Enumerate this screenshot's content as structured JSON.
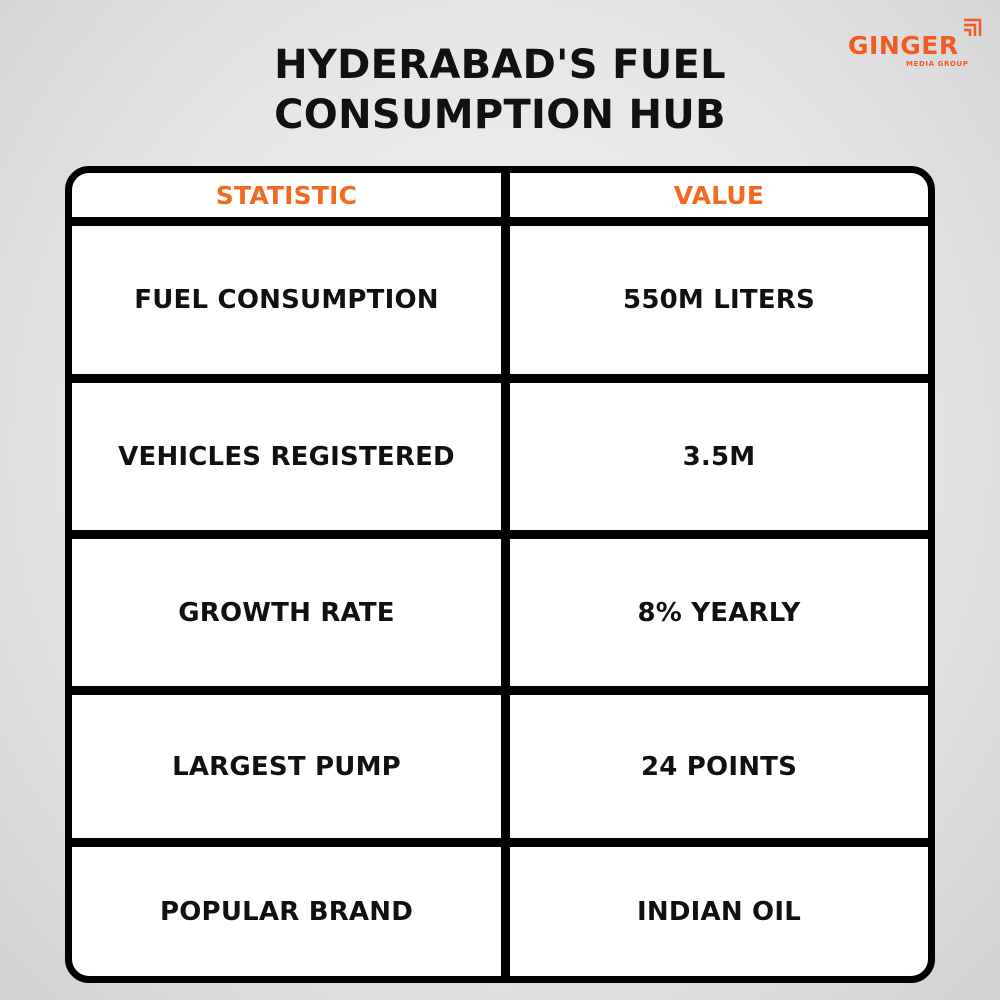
{
  "title": {
    "line1": "HYDERABAD'S FUEL",
    "line2": "CONSUMPTION HUB"
  },
  "logo": {
    "word": "GINGER",
    "sub": "MEDIA GROUP",
    "color": "#f15a22"
  },
  "table": {
    "headers": {
      "statistic": "STATISTIC",
      "value": "VALUE"
    },
    "rows": [
      {
        "statistic": "FUEL CONSUMPTION",
        "value": "550M LITERS"
      },
      {
        "statistic": "VEHICLES REGISTERED",
        "value": "3.5M"
      },
      {
        "statistic": "GROWTH RATE",
        "value": "8% YEARLY"
      },
      {
        "statistic": "LARGEST PUMP",
        "value": "24 POINTS"
      },
      {
        "statistic": "POPULAR BRAND",
        "value": "INDIAN OIL"
      }
    ],
    "header_color": "#f26a21"
  }
}
